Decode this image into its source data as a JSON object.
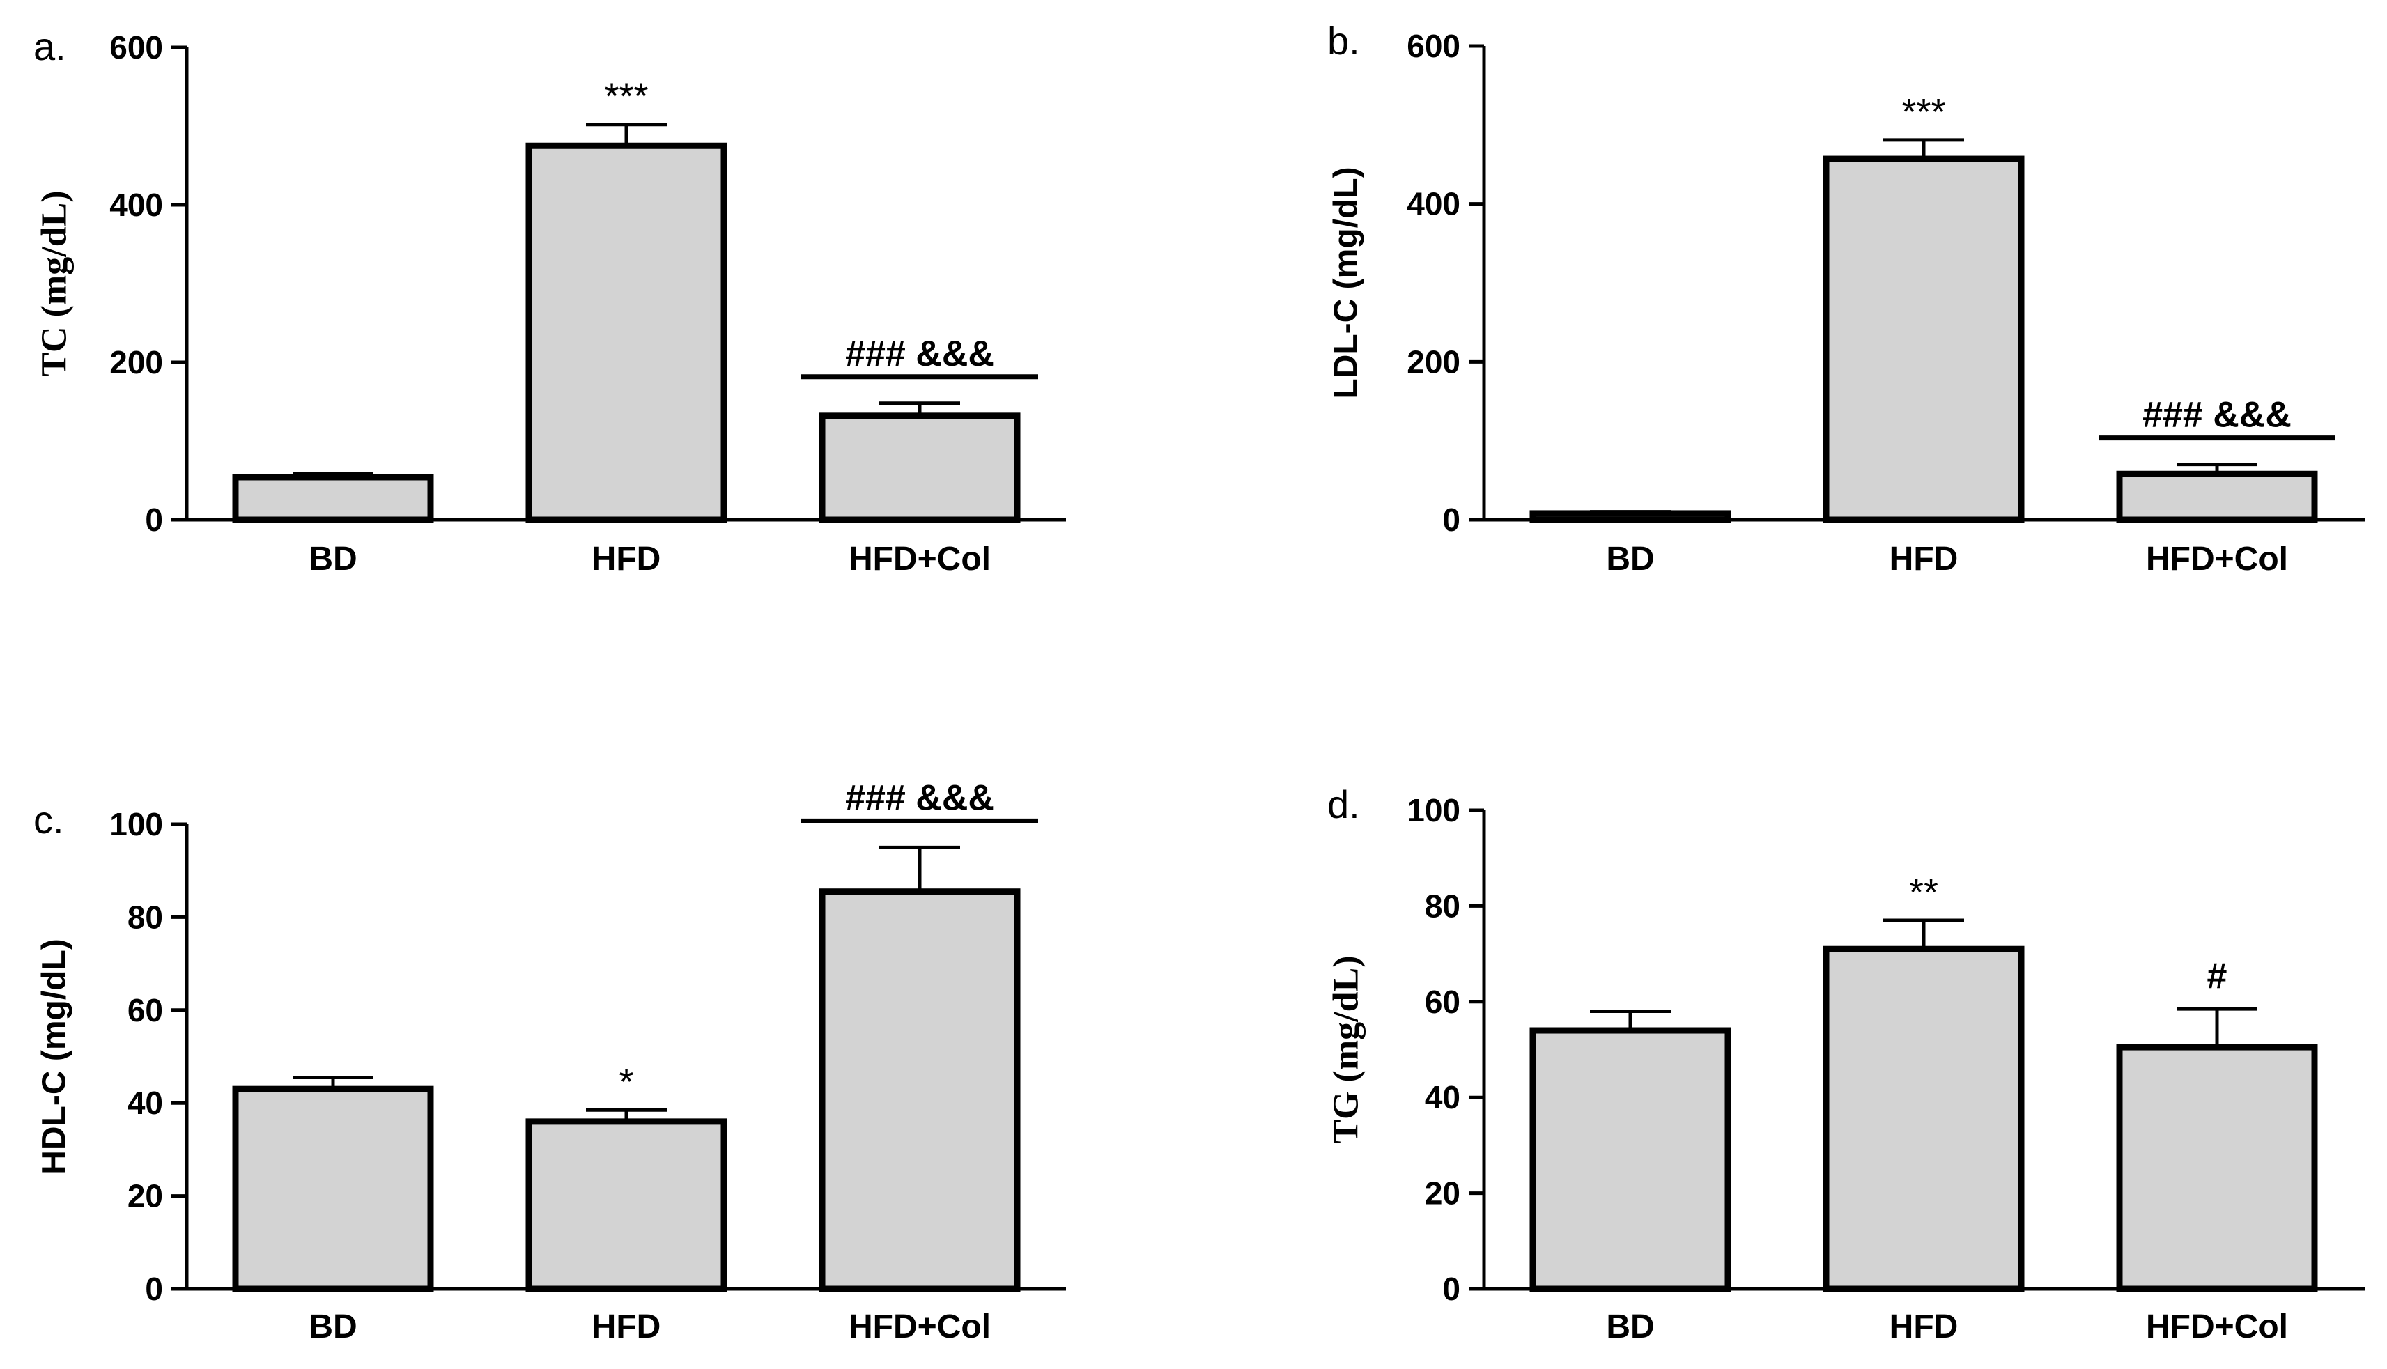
{
  "figure": {
    "background": "#ffffff",
    "bar_fill": "#d3d3d3",
    "stroke": "#000000"
  },
  "chart_data": [
    {
      "panel": "a.",
      "type": "bar",
      "categories": [
        "BD",
        "HFD",
        "HFD+Col"
      ],
      "values": [
        54,
        475,
        132
      ],
      "errors": [
        4,
        27,
        16
      ],
      "ylabel": "TC (mg/dL)",
      "ylim": [
        0,
        600
      ],
      "yticks": [
        "0",
        "200",
        "400",
        "600"
      ],
      "significance": [
        {
          "category": "HFD",
          "text": "***",
          "bracket": false
        },
        {
          "category": "HFD+Col",
          "text": "### &&&",
          "bracket": true
        }
      ]
    },
    {
      "panel": "b.",
      "type": "bar",
      "categories": [
        "BD",
        "HFD",
        "HFD+Col"
      ],
      "values": [
        8,
        457,
        58
      ],
      "errors": [
        2,
        24,
        12
      ],
      "ylabel": "LDL-C (mg/dL)",
      "ylim": [
        0,
        600
      ],
      "yticks": [
        "0",
        "200",
        "400",
        "600"
      ],
      "significance": [
        {
          "category": "HFD",
          "text": "***",
          "bracket": false
        },
        {
          "category": "HFD+Col",
          "text": "### &&&",
          "bracket": true
        }
      ]
    },
    {
      "panel": "c.",
      "type": "bar",
      "categories": [
        "BD",
        "HFD",
        "HFD+Col"
      ],
      "values": [
        43,
        36,
        85.5
      ],
      "errors": [
        2.5,
        2.5,
        9.5
      ],
      "ylabel": "HDL-C (mg/dL)",
      "ylim": [
        0,
        100
      ],
      "yticks": [
        "0",
        "20",
        "40",
        "60",
        "80",
        "100"
      ],
      "significance": [
        {
          "category": "HFD",
          "text": "*",
          "bracket": false
        },
        {
          "category": "HFD+Col",
          "text": "### &&&",
          "bracket": true
        }
      ]
    },
    {
      "panel": "d.",
      "type": "bar",
      "categories": [
        "BD",
        "HFD",
        "HFD+Col"
      ],
      "values": [
        54,
        71,
        50.5
      ],
      "errors": [
        4,
        6,
        8
      ],
      "ylabel": "TG (mg/dL)",
      "ylim": [
        0,
        100
      ],
      "yticks": [
        "0",
        "20",
        "40",
        "60",
        "80",
        "100"
      ],
      "significance": [
        {
          "category": "HFD",
          "text": "**",
          "bracket": false
        },
        {
          "category": "HFD+Col",
          "text": "#",
          "bracket": false
        }
      ]
    }
  ]
}
